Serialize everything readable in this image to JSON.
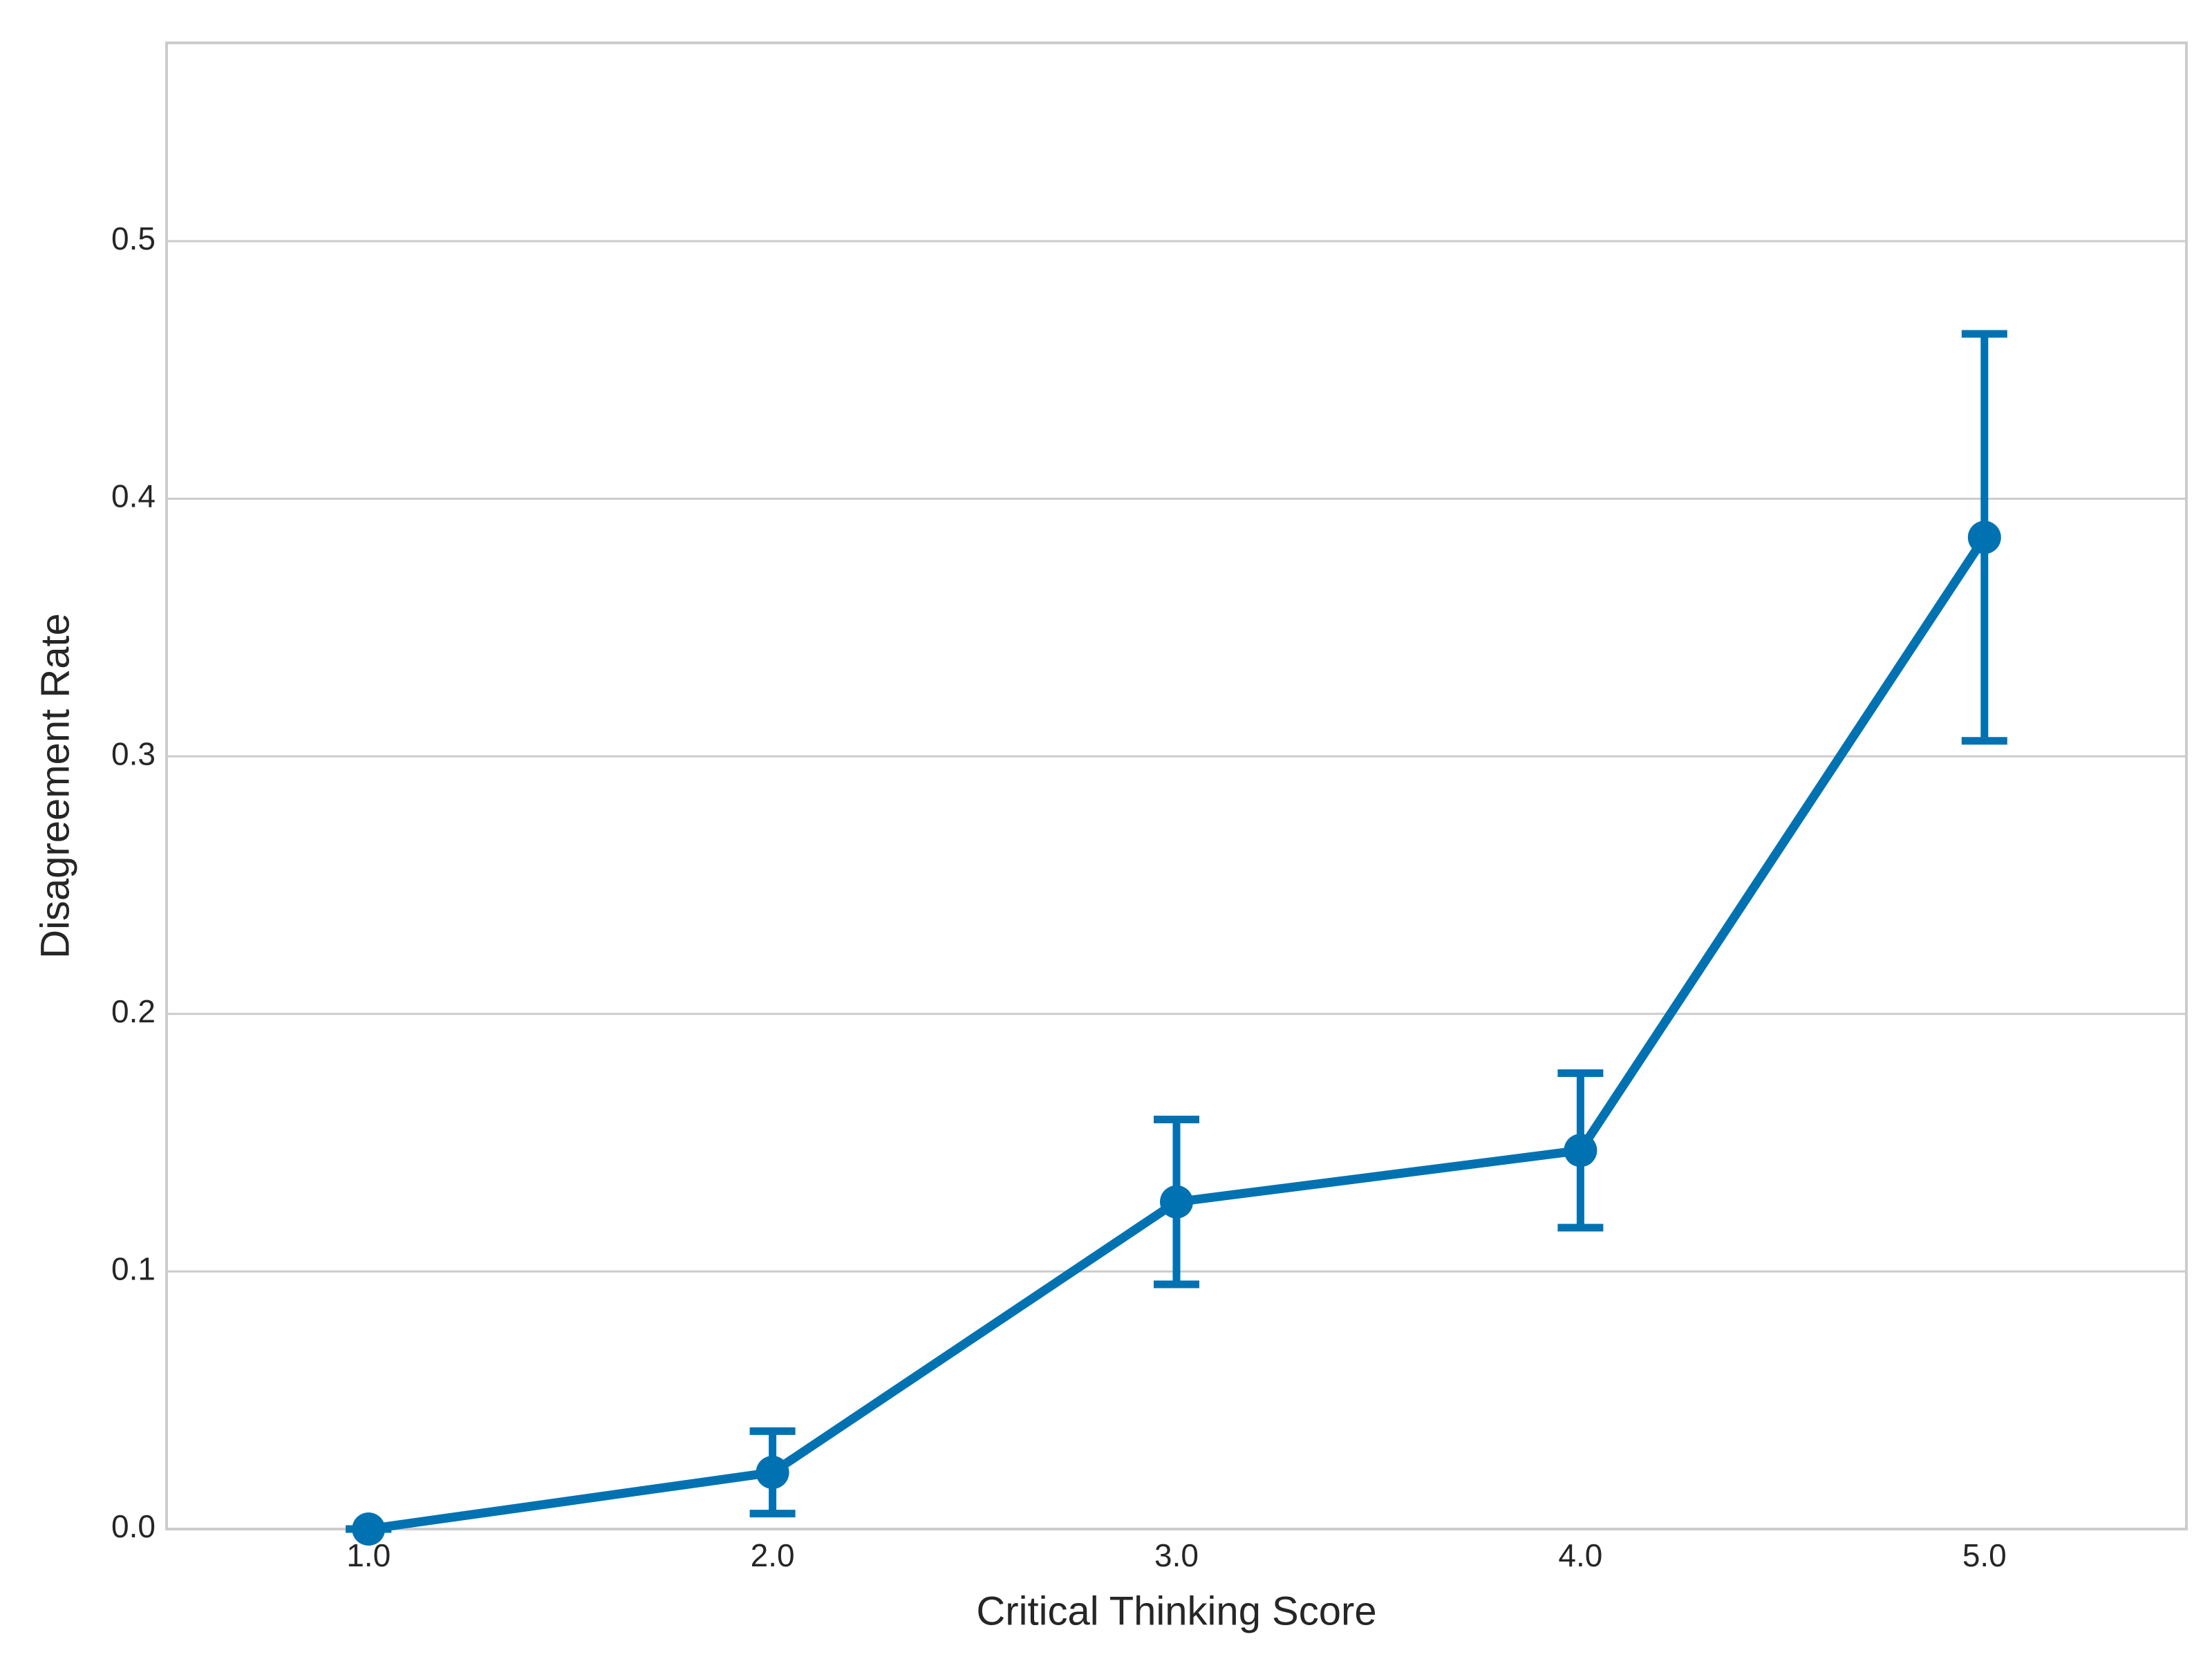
{
  "chart_data": {
    "type": "pointplot",
    "xlabel": "Critical Thinking Score",
    "ylabel": "Disagreement Rate",
    "categories": [
      "1.0",
      "2.0",
      "3.0",
      "4.0",
      "5.0"
    ],
    "series": [
      {
        "color": "#0072b2",
        "values": [
          0.0,
          0.022,
          0.127,
          0.147,
          0.385
        ],
        "ci_low": [
          0.0,
          0.006,
          0.095,
          0.117,
          0.306
        ],
        "ci_high": [
          0.0,
          0.038,
          0.159,
          0.177,
          0.464
        ]
      }
    ],
    "ylim": [
      0,
      0.577
    ],
    "yticks": [
      {
        "value": 0,
        "label": "0.0"
      },
      0.1,
      0.2,
      0.3,
      0.4,
      0.5
    ],
    "grid": true
  }
}
